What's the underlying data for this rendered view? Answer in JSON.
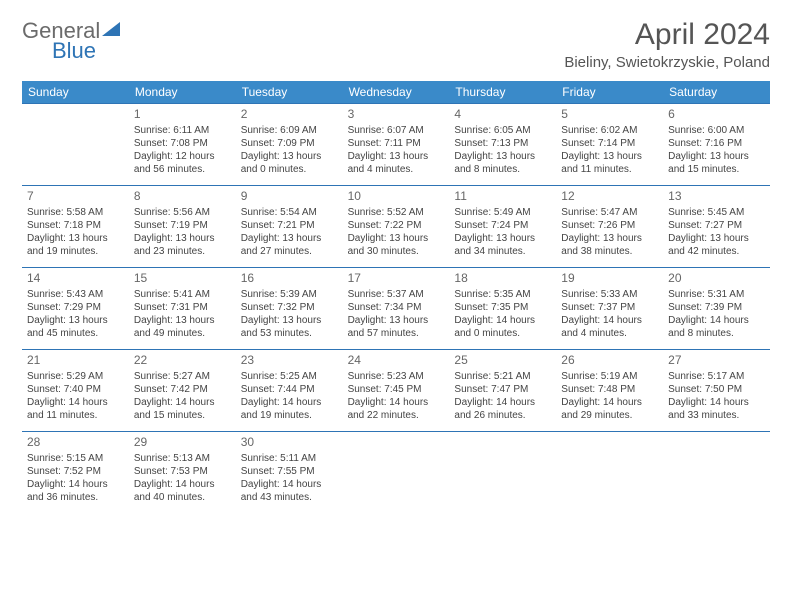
{
  "branding": {
    "text1": "General",
    "text2": "Blue",
    "logo_fill": "#2e74b5"
  },
  "header": {
    "month_title": "April 2024",
    "location": "Bieliny, Swietokrzyskie, Poland"
  },
  "colors": {
    "header_bg": "#3a8ac9",
    "header_text": "#ffffff",
    "border": "#2e74b5",
    "body_text": "#444444",
    "daynum_text": "#666666"
  },
  "day_names": [
    "Sunday",
    "Monday",
    "Tuesday",
    "Wednesday",
    "Thursday",
    "Friday",
    "Saturday"
  ],
  "weeks": [
    [
      {
        "day": "",
        "sunrise": "",
        "sunset": "",
        "daylight": ""
      },
      {
        "day": "1",
        "sunrise": "Sunrise: 6:11 AM",
        "sunset": "Sunset: 7:08 PM",
        "daylight": "Daylight: 12 hours and 56 minutes."
      },
      {
        "day": "2",
        "sunrise": "Sunrise: 6:09 AM",
        "sunset": "Sunset: 7:09 PM",
        "daylight": "Daylight: 13 hours and 0 minutes."
      },
      {
        "day": "3",
        "sunrise": "Sunrise: 6:07 AM",
        "sunset": "Sunset: 7:11 PM",
        "daylight": "Daylight: 13 hours and 4 minutes."
      },
      {
        "day": "4",
        "sunrise": "Sunrise: 6:05 AM",
        "sunset": "Sunset: 7:13 PM",
        "daylight": "Daylight: 13 hours and 8 minutes."
      },
      {
        "day": "5",
        "sunrise": "Sunrise: 6:02 AM",
        "sunset": "Sunset: 7:14 PM",
        "daylight": "Daylight: 13 hours and 11 minutes."
      },
      {
        "day": "6",
        "sunrise": "Sunrise: 6:00 AM",
        "sunset": "Sunset: 7:16 PM",
        "daylight": "Daylight: 13 hours and 15 minutes."
      }
    ],
    [
      {
        "day": "7",
        "sunrise": "Sunrise: 5:58 AM",
        "sunset": "Sunset: 7:18 PM",
        "daylight": "Daylight: 13 hours and 19 minutes."
      },
      {
        "day": "8",
        "sunrise": "Sunrise: 5:56 AM",
        "sunset": "Sunset: 7:19 PM",
        "daylight": "Daylight: 13 hours and 23 minutes."
      },
      {
        "day": "9",
        "sunrise": "Sunrise: 5:54 AM",
        "sunset": "Sunset: 7:21 PM",
        "daylight": "Daylight: 13 hours and 27 minutes."
      },
      {
        "day": "10",
        "sunrise": "Sunrise: 5:52 AM",
        "sunset": "Sunset: 7:22 PM",
        "daylight": "Daylight: 13 hours and 30 minutes."
      },
      {
        "day": "11",
        "sunrise": "Sunrise: 5:49 AM",
        "sunset": "Sunset: 7:24 PM",
        "daylight": "Daylight: 13 hours and 34 minutes."
      },
      {
        "day": "12",
        "sunrise": "Sunrise: 5:47 AM",
        "sunset": "Sunset: 7:26 PM",
        "daylight": "Daylight: 13 hours and 38 minutes."
      },
      {
        "day": "13",
        "sunrise": "Sunrise: 5:45 AM",
        "sunset": "Sunset: 7:27 PM",
        "daylight": "Daylight: 13 hours and 42 minutes."
      }
    ],
    [
      {
        "day": "14",
        "sunrise": "Sunrise: 5:43 AM",
        "sunset": "Sunset: 7:29 PM",
        "daylight": "Daylight: 13 hours and 45 minutes."
      },
      {
        "day": "15",
        "sunrise": "Sunrise: 5:41 AM",
        "sunset": "Sunset: 7:31 PM",
        "daylight": "Daylight: 13 hours and 49 minutes."
      },
      {
        "day": "16",
        "sunrise": "Sunrise: 5:39 AM",
        "sunset": "Sunset: 7:32 PM",
        "daylight": "Daylight: 13 hours and 53 minutes."
      },
      {
        "day": "17",
        "sunrise": "Sunrise: 5:37 AM",
        "sunset": "Sunset: 7:34 PM",
        "daylight": "Daylight: 13 hours and 57 minutes."
      },
      {
        "day": "18",
        "sunrise": "Sunrise: 5:35 AM",
        "sunset": "Sunset: 7:35 PM",
        "daylight": "Daylight: 14 hours and 0 minutes."
      },
      {
        "day": "19",
        "sunrise": "Sunrise: 5:33 AM",
        "sunset": "Sunset: 7:37 PM",
        "daylight": "Daylight: 14 hours and 4 minutes."
      },
      {
        "day": "20",
        "sunrise": "Sunrise: 5:31 AM",
        "sunset": "Sunset: 7:39 PM",
        "daylight": "Daylight: 14 hours and 8 minutes."
      }
    ],
    [
      {
        "day": "21",
        "sunrise": "Sunrise: 5:29 AM",
        "sunset": "Sunset: 7:40 PM",
        "daylight": "Daylight: 14 hours and 11 minutes."
      },
      {
        "day": "22",
        "sunrise": "Sunrise: 5:27 AM",
        "sunset": "Sunset: 7:42 PM",
        "daylight": "Daylight: 14 hours and 15 minutes."
      },
      {
        "day": "23",
        "sunrise": "Sunrise: 5:25 AM",
        "sunset": "Sunset: 7:44 PM",
        "daylight": "Daylight: 14 hours and 19 minutes."
      },
      {
        "day": "24",
        "sunrise": "Sunrise: 5:23 AM",
        "sunset": "Sunset: 7:45 PM",
        "daylight": "Daylight: 14 hours and 22 minutes."
      },
      {
        "day": "25",
        "sunrise": "Sunrise: 5:21 AM",
        "sunset": "Sunset: 7:47 PM",
        "daylight": "Daylight: 14 hours and 26 minutes."
      },
      {
        "day": "26",
        "sunrise": "Sunrise: 5:19 AM",
        "sunset": "Sunset: 7:48 PM",
        "daylight": "Daylight: 14 hours and 29 minutes."
      },
      {
        "day": "27",
        "sunrise": "Sunrise: 5:17 AM",
        "sunset": "Sunset: 7:50 PM",
        "daylight": "Daylight: 14 hours and 33 minutes."
      }
    ],
    [
      {
        "day": "28",
        "sunrise": "Sunrise: 5:15 AM",
        "sunset": "Sunset: 7:52 PM",
        "daylight": "Daylight: 14 hours and 36 minutes."
      },
      {
        "day": "29",
        "sunrise": "Sunrise: 5:13 AM",
        "sunset": "Sunset: 7:53 PM",
        "daylight": "Daylight: 14 hours and 40 minutes."
      },
      {
        "day": "30",
        "sunrise": "Sunrise: 5:11 AM",
        "sunset": "Sunset: 7:55 PM",
        "daylight": "Daylight: 14 hours and 43 minutes."
      },
      {
        "day": "",
        "sunrise": "",
        "sunset": "",
        "daylight": ""
      },
      {
        "day": "",
        "sunrise": "",
        "sunset": "",
        "daylight": ""
      },
      {
        "day": "",
        "sunrise": "",
        "sunset": "",
        "daylight": ""
      },
      {
        "day": "",
        "sunrise": "",
        "sunset": "",
        "daylight": ""
      }
    ]
  ]
}
